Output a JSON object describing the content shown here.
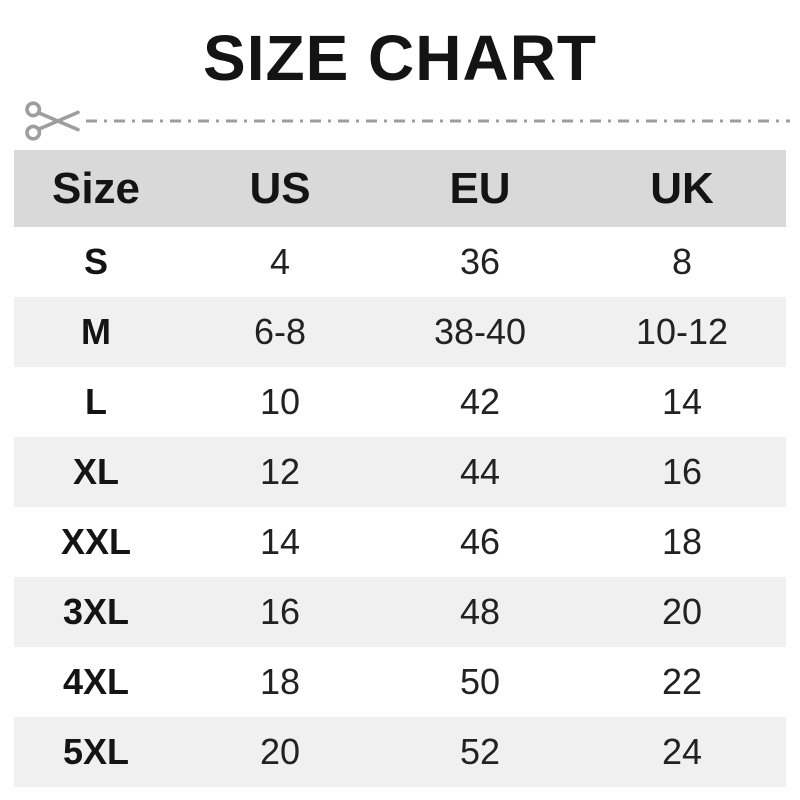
{
  "title": "SIZE CHART",
  "cut_line": {
    "icon": "scissors-icon"
  },
  "table": {
    "headers": [
      "Size",
      "US",
      "EU",
      "UK"
    ],
    "rows": [
      [
        "S",
        "4",
        "36",
        "8"
      ],
      [
        "M",
        "6-8",
        "38-40",
        "10-12"
      ],
      [
        "L",
        "10",
        "42",
        "14"
      ],
      [
        "XL",
        "12",
        "44",
        "16"
      ],
      [
        "XXL",
        "14",
        "46",
        "18"
      ],
      [
        "3XL",
        "16",
        "48",
        "20"
      ],
      [
        "4XL",
        "18",
        "50",
        "22"
      ],
      [
        "5XL",
        "20",
        "52",
        "24"
      ]
    ],
    "column_names": [
      "size-cell",
      "us-cell",
      "eu-cell",
      "uk-cell"
    ]
  },
  "colors": {
    "header_bg": "#d9d9d9",
    "alt_row_bg": "#f0f0f0",
    "cut_line_gray": "#9e9e9e",
    "title_text": "#141414",
    "value_text": "#222222"
  }
}
